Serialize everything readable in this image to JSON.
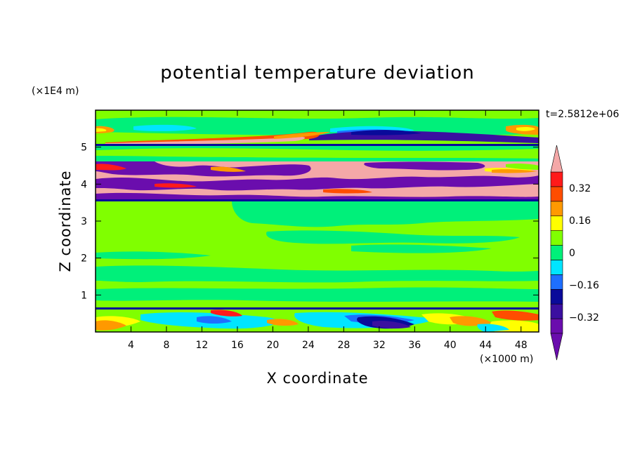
{
  "chart_data": {
    "type": "heatmap",
    "title": "potential temperature deviation",
    "xlabel": "X coordinate",
    "ylabel": "Z coordinate",
    "x_unit": "(×1000 m)",
    "y_unit": "(×1E4 m)",
    "time_label": "t=2.5812e+06",
    "xlim": [
      0,
      50
    ],
    "ylim": [
      0,
      6
    ],
    "x_ticks": [
      4,
      8,
      12,
      16,
      20,
      24,
      28,
      32,
      36,
      40,
      44,
      48
    ],
    "x_tick_labels": [
      "4",
      "8",
      "12",
      "16",
      "20",
      "24",
      "28",
      "32",
      "36",
      "40",
      "44",
      "48"
    ],
    "y_ticks": [
      1,
      2,
      3,
      4,
      5
    ],
    "y_tick_labels": [
      "1",
      "2",
      "3",
      "4",
      "5"
    ],
    "colorbar": {
      "levels": [
        -0.4,
        -0.32,
        -0.24,
        -0.16,
        -0.08,
        0,
        0.08,
        0.16,
        0.24,
        0.32,
        0.4
      ],
      "labels": [
        {
          "value": -0.32,
          "text": "−0.32"
        },
        {
          "value": -0.16,
          "text": "−0.16"
        },
        {
          "value": 0,
          "text": "0"
        },
        {
          "value": 0.16,
          "text": "0.16"
        },
        {
          "value": 0.32,
          "text": "0.32"
        }
      ],
      "colors": [
        "#6a0dad",
        "#3b0fa0",
        "#0a0a9a",
        "#1e6fff",
        "#00e5ff",
        "#00f07a",
        "#80ff00",
        "#ffff00",
        "#ff9900",
        "#ff4d00",
        "#ff1a1a"
      ],
      "over_color": "#f4a8a8",
      "under_color": "#6a0dad",
      "extend": "both"
    },
    "field_regions": [
      {
        "z_range": [
          0,
          0.6
        ],
        "dominant": "mixed",
        "values_range": [
          -0.4,
          0.4
        ]
      },
      {
        "z_range": [
          0.6,
          3.5
        ],
        "dominant": "near-zero",
        "values_range": [
          -0.08,
          0.08
        ]
      },
      {
        "z_range": [
          3.5,
          4.6
        ],
        "dominant": "strong alternating",
        "values_range": [
          -0.4,
          0.4
        ]
      },
      {
        "z_range": [
          4.6,
          5.1
        ],
        "dominant": "near-zero",
        "values_range": [
          -0.08,
          0.08
        ]
      },
      {
        "z_range": [
          5.1,
          6.0
        ],
        "dominant": "layered",
        "values_range": [
          -0.4,
          0.4
        ]
      }
    ],
    "grid": false
  }
}
